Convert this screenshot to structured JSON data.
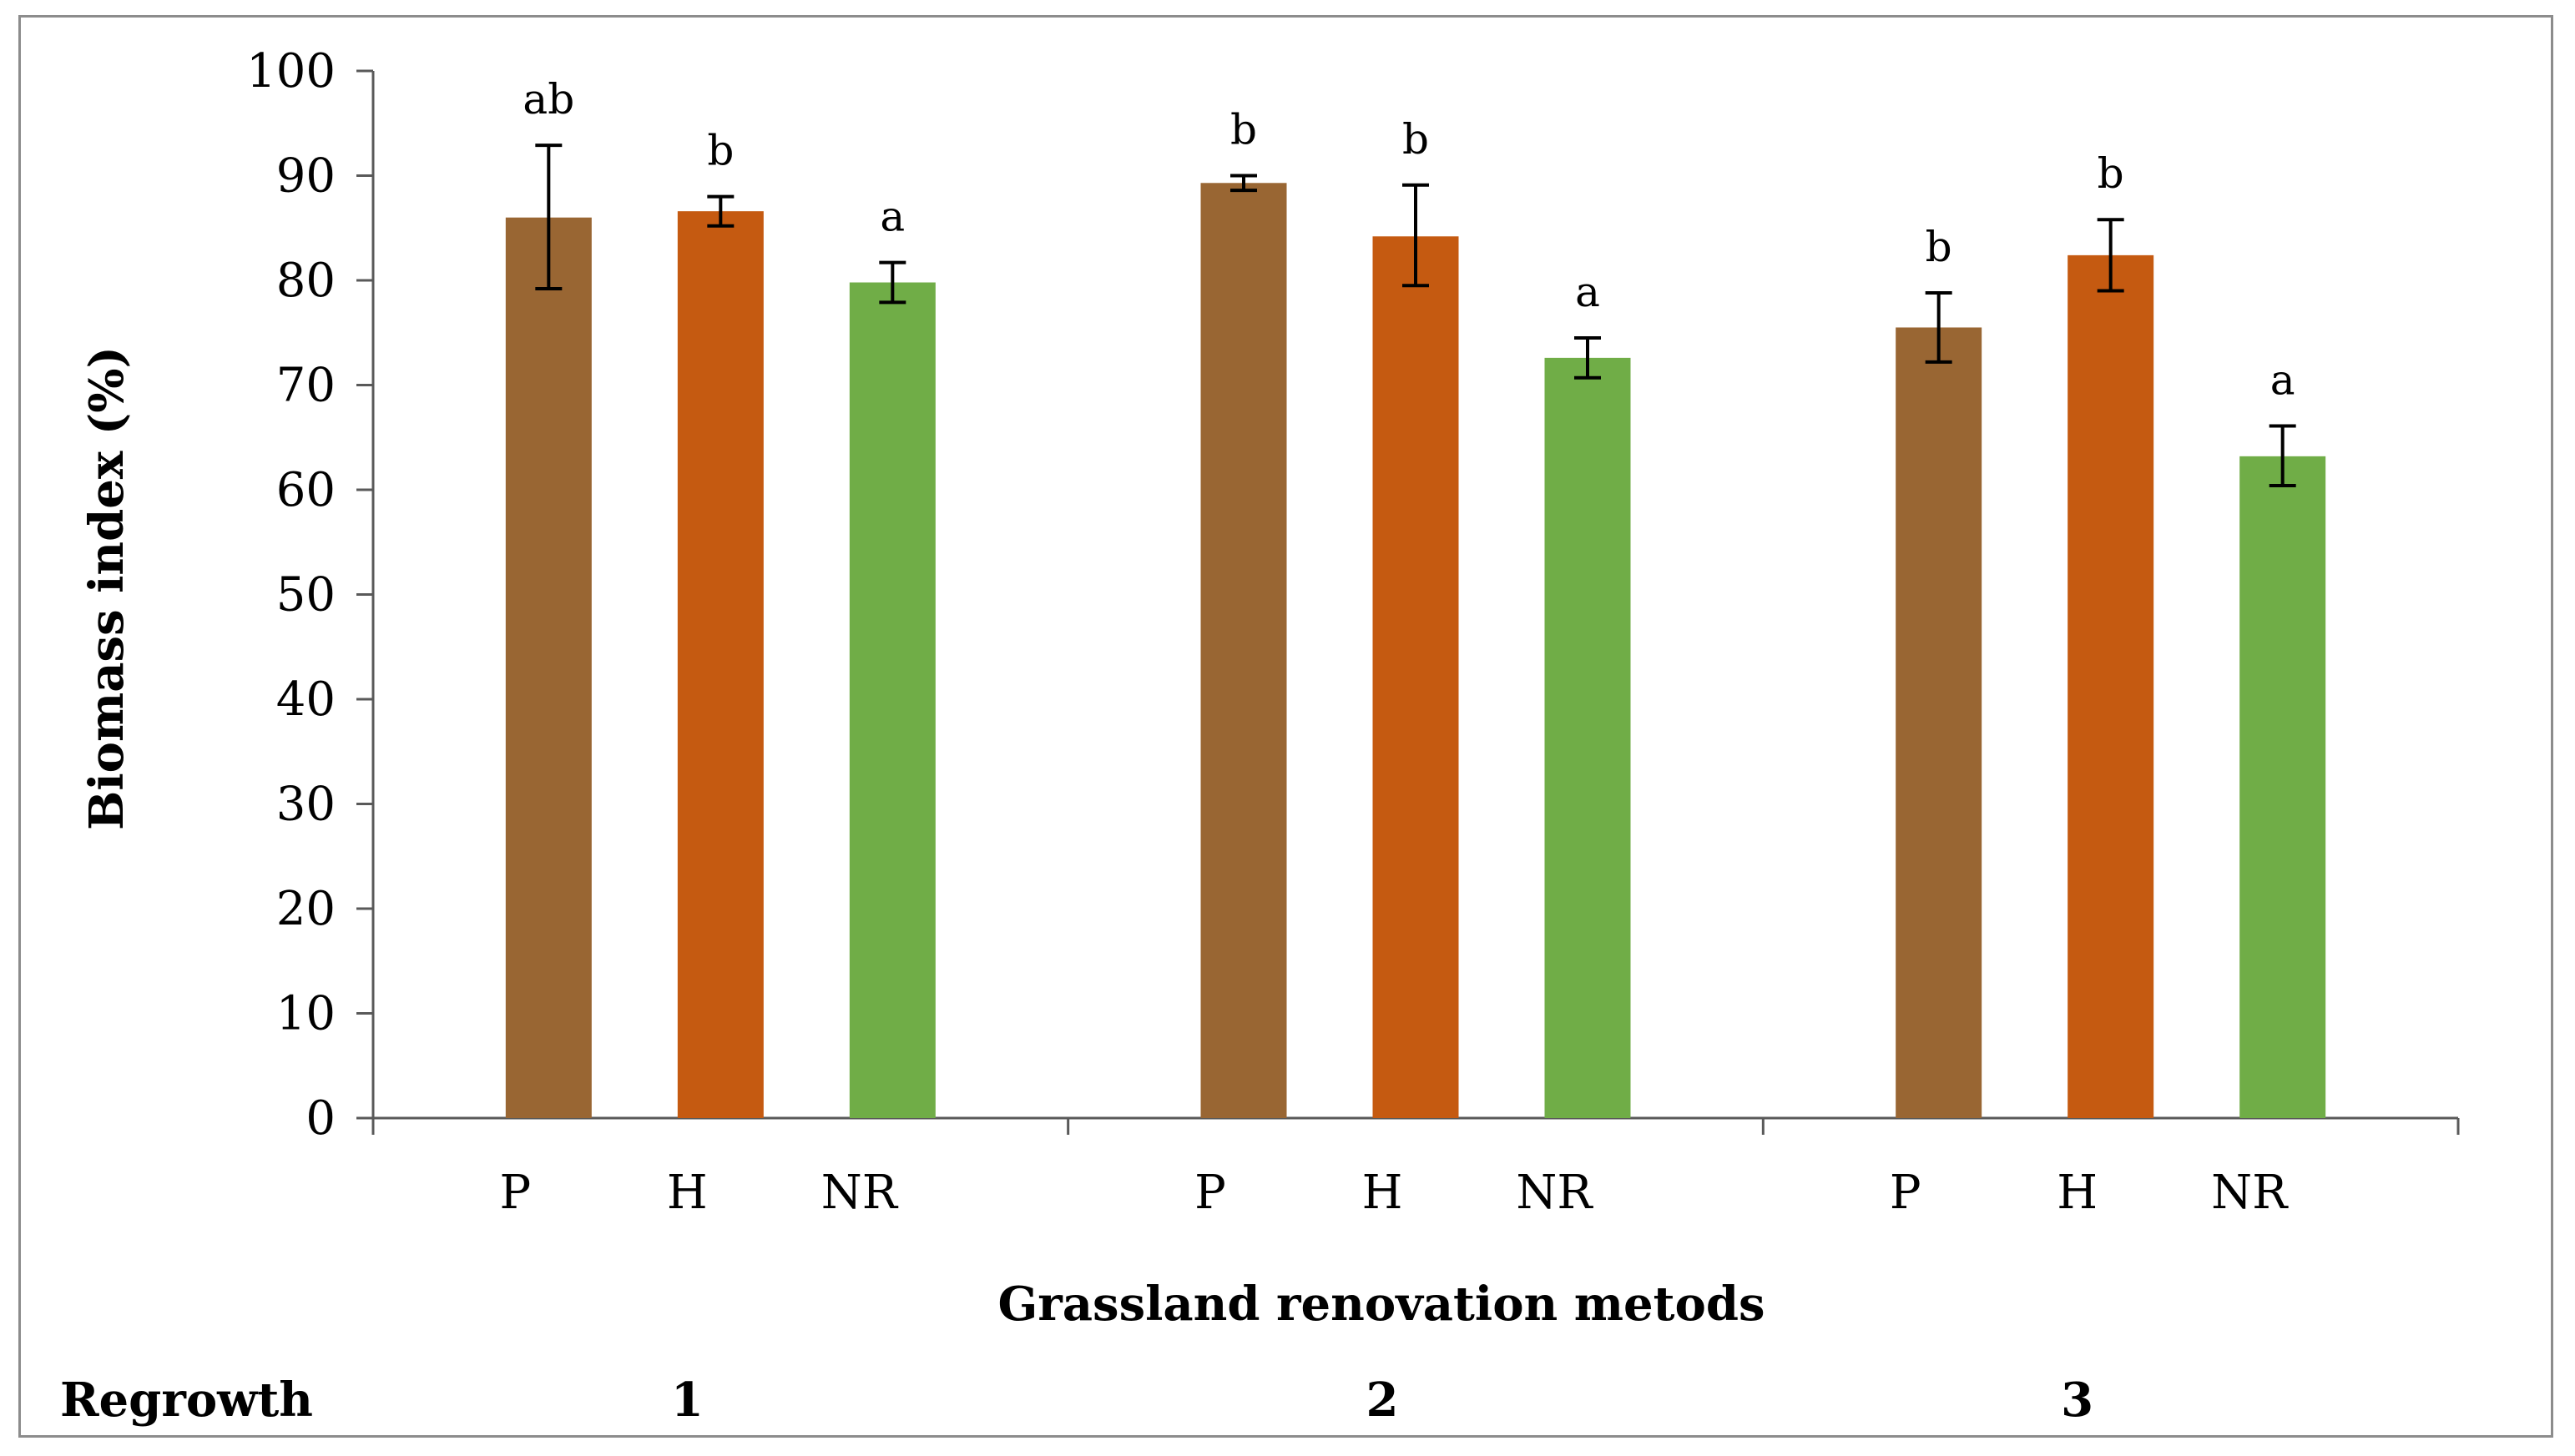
{
  "chart_data": {
    "type": "bar",
    "ylabel": "Biomass index (%)",
    "xlabel": "Grassland renovation metods",
    "ylim": [
      0,
      100
    ],
    "yticks": [
      0,
      10,
      20,
      30,
      40,
      50,
      60,
      70,
      80,
      90,
      100
    ],
    "group_header": "Regrowth",
    "groups": [
      {
        "label": "1",
        "bars": [
          {
            "category": "P",
            "value": 86.0,
            "err_low": 79.2,
            "err_high": 92.9,
            "letter": "ab"
          },
          {
            "category": "H",
            "value": 86.6,
            "err_low": 85.2,
            "err_high": 88.0,
            "letter": "b"
          },
          {
            "category": "NR",
            "value": 79.8,
            "err_low": 77.9,
            "err_high": 81.7,
            "letter": "a"
          }
        ]
      },
      {
        "label": "2",
        "bars": [
          {
            "category": "P",
            "value": 89.3,
            "err_low": 88.6,
            "err_high": 90.0,
            "letter": "b"
          },
          {
            "category": "H",
            "value": 84.2,
            "err_low": 79.5,
            "err_high": 89.1,
            "letter": "b"
          },
          {
            "category": "NR",
            "value": 72.6,
            "err_low": 70.7,
            "err_high": 74.5,
            "letter": "a"
          }
        ]
      },
      {
        "label": "3",
        "bars": [
          {
            "category": "P",
            "value": 75.5,
            "err_low": 72.2,
            "err_high": 78.8,
            "letter": "b"
          },
          {
            "category": "H",
            "value": 82.4,
            "err_low": 79.0,
            "err_high": 85.8,
            "letter": "b"
          },
          {
            "category": "NR",
            "value": 63.2,
            "err_low": 60.4,
            "err_high": 66.1,
            "letter": "a"
          }
        ]
      }
    ],
    "colors": {
      "P": "#996633",
      "H": "#c55a11",
      "NR": "#70ad47",
      "axis": "#595959",
      "error": "#000000"
    }
  }
}
